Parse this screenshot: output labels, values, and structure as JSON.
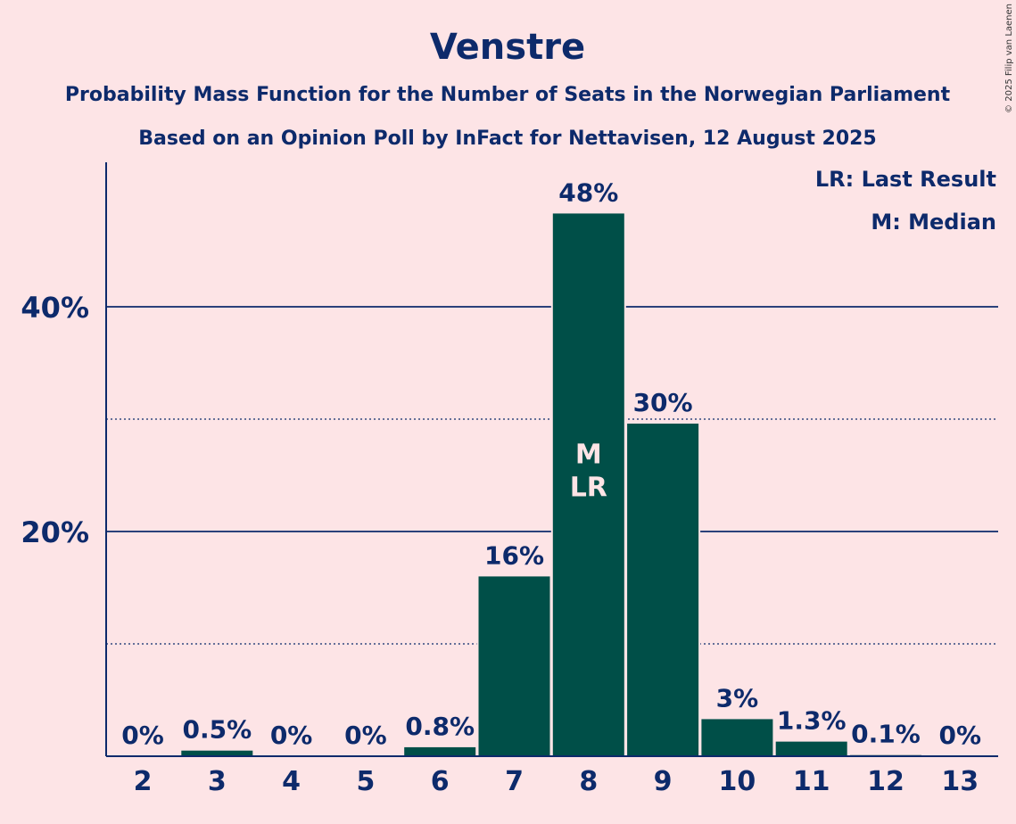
{
  "chart_data": {
    "type": "bar",
    "title": "Venstre",
    "subtitle_lines": [
      "Probability Mass Function for the Number of Seats in the Norwegian Parliament",
      "Based on an Opinion Poll by InFact for Nettavisen, 12 August 2025"
    ],
    "categories": [
      "2",
      "3",
      "4",
      "5",
      "6",
      "7",
      "8",
      "9",
      "10",
      "11",
      "12",
      "13"
    ],
    "values": [
      0,
      0.5,
      0,
      0,
      0.8,
      16,
      48.3,
      29.6,
      3.3,
      1.3,
      0.1,
      0
    ],
    "value_labels": [
      "0%",
      "0.5%",
      "0%",
      "0%",
      "0.8%",
      "16%",
      "48%",
      "30%",
      "3%",
      "1.3%",
      "0.1%",
      "0%"
    ],
    "ylim": [
      0,
      52
    ],
    "yticks": [
      {
        "value": 20,
        "label": "20%"
      },
      {
        "value": 40,
        "label": "40%"
      }
    ],
    "dotted_grid": [
      10,
      30
    ],
    "bar_annotations": [
      {
        "category": "8",
        "lines": [
          "M",
          "LR"
        ]
      }
    ],
    "legend": [
      "LR: Last Result",
      "M: Median"
    ],
    "legend_position": "top-right",
    "colors": {
      "bar": "#004F48",
      "background": "#FDE4E6",
      "text": "#0D2A6B"
    }
  },
  "copyright": "© 2025 Filip van Laenen"
}
